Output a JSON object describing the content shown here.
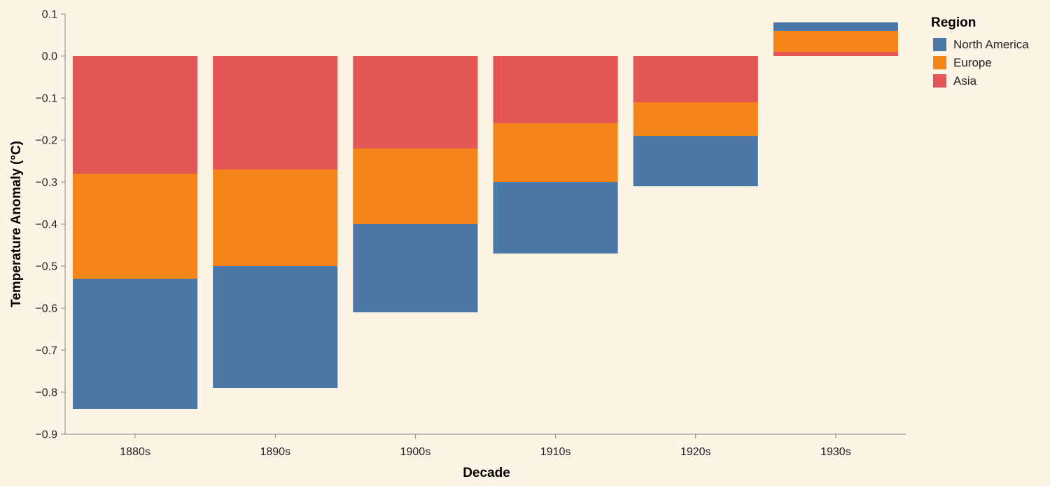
{
  "chart_data": {
    "type": "bar",
    "stacked": true,
    "categories": [
      "1880s",
      "1890s",
      "1900s",
      "1910s",
      "1920s",
      "1930s"
    ],
    "series": [
      {
        "name": "North America",
        "color": "#4c78a8",
        "values": [
          -0.31,
          -0.29,
          -0.21,
          -0.17,
          -0.12,
          0.02
        ]
      },
      {
        "name": "Europe",
        "color": "#f58518",
        "values": [
          -0.25,
          -0.23,
          -0.18,
          -0.14,
          -0.08,
          0.05
        ]
      },
      {
        "name": "Asia",
        "color": "#e45756",
        "values": [
          -0.28,
          -0.27,
          -0.22,
          -0.16,
          -0.11,
          0.01
        ]
      }
    ],
    "xlabel": "Decade",
    "ylabel": "Temperature Anomaly (°C)",
    "ylim": [
      -0.9,
      0.1
    ],
    "yticks": [
      "0.1",
      "0.0",
      "−0.1",
      "−0.2",
      "−0.3",
      "−0.4",
      "−0.5",
      "−0.6",
      "−0.7",
      "−0.8",
      "−0.9"
    ],
    "ytick_values": [
      0.1,
      0.0,
      -0.1,
      -0.2,
      -0.3,
      -0.4,
      -0.5,
      -0.6,
      -0.7,
      -0.8,
      -0.9
    ],
    "legend": {
      "title": "Region",
      "placement": "right"
    },
    "grid": false
  }
}
